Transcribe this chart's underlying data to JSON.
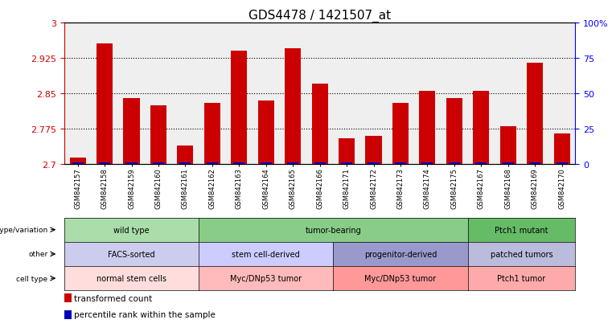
{
  "title": "GDS4478 / 1421507_at",
  "samples": [
    "GSM842157",
    "GSM842158",
    "GSM842159",
    "GSM842160",
    "GSM842161",
    "GSM842162",
    "GSM842163",
    "GSM842164",
    "GSM842165",
    "GSM842166",
    "GSM842171",
    "GSM842172",
    "GSM842173",
    "GSM842174",
    "GSM842175",
    "GSM842167",
    "GSM842168",
    "GSM842169",
    "GSM842170"
  ],
  "red_values": [
    2.715,
    2.955,
    2.84,
    2.825,
    2.74,
    2.83,
    2.94,
    2.835,
    2.945,
    2.87,
    2.755,
    2.76,
    2.83,
    2.855,
    2.84,
    2.855,
    2.78,
    2.915,
    2.765
  ],
  "blue_right_values": [
    1.5,
    1.5,
    1.5,
    1.5,
    1.5,
    1.5,
    1.5,
    1.5,
    1.5,
    1.5,
    1.5,
    1.5,
    1.5,
    1.5,
    1.5,
    1.5,
    1.5,
    1.5,
    1.5
  ],
  "ylim_left": [
    2.7,
    3.0
  ],
  "ylim_right": [
    0,
    100
  ],
  "yticks_left": [
    2.7,
    2.775,
    2.85,
    2.925,
    3.0
  ],
  "yticks_right": [
    0,
    25,
    50,
    75,
    100
  ],
  "ytick_labels_left": [
    "2.7",
    "2.775",
    "2.85",
    "2.925",
    "3"
  ],
  "ytick_labels_right": [
    "0",
    "25",
    "50",
    "75",
    "100%"
  ],
  "grid_lines": [
    2.775,
    2.85,
    2.925
  ],
  "bar_width": 0.6,
  "red_color": "#CC0000",
  "blue_color": "#0000BB",
  "annotation_rows": [
    {
      "label": "genotype/variation",
      "groups": [
        {
          "text": "wild type",
          "start": 0,
          "end": 4,
          "color": "#AADDAA"
        },
        {
          "text": "tumor-bearing",
          "start": 5,
          "end": 14,
          "color": "#88CC88"
        },
        {
          "text": "Ptch1 mutant",
          "start": 15,
          "end": 18,
          "color": "#66BB66"
        }
      ]
    },
    {
      "label": "other",
      "groups": [
        {
          "text": "FACS-sorted",
          "start": 0,
          "end": 4,
          "color": "#CCCCEE"
        },
        {
          "text": "stem cell-derived",
          "start": 5,
          "end": 9,
          "color": "#CCCCFF"
        },
        {
          "text": "progenitor-derived",
          "start": 10,
          "end": 14,
          "color": "#9999CC"
        },
        {
          "text": "patched tumors",
          "start": 15,
          "end": 18,
          "color": "#BBBBDD"
        }
      ]
    },
    {
      "label": "cell type",
      "groups": [
        {
          "text": "normal stem cells",
          "start": 0,
          "end": 4,
          "color": "#FFDDDD"
        },
        {
          "text": "Myc/DNp53 tumor",
          "start": 5,
          "end": 9,
          "color": "#FFBBBB"
        },
        {
          "text": "Myc/DNp53 tumor",
          "start": 10,
          "end": 14,
          "color": "#FF9999"
        },
        {
          "text": "Ptch1 tumor",
          "start": 15,
          "end": 18,
          "color": "#FFAAAA"
        }
      ]
    }
  ],
  "legend_items": [
    {
      "label": "transformed count",
      "color": "#CC0000"
    },
    {
      "label": "percentile rank within the sample",
      "color": "#0000BB"
    }
  ],
  "bg_color": "#FFFFFF",
  "plot_bg_color": "#EFEFEF"
}
